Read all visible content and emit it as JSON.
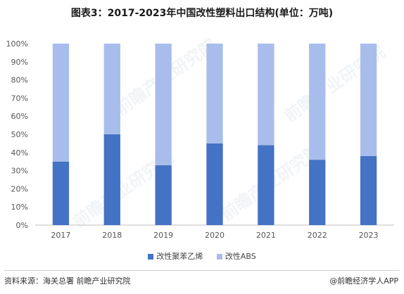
{
  "title": "图表3：2017-2023年中国改性塑料出口结构(单位：万吨)",
  "footer": {
    "source": "资料来源：海关总署  前瞻产业研究院",
    "brand": "@前瞻经济学人APP"
  },
  "watermark_text": "前瞻产业研究院",
  "colors": {
    "series1": "#4472c4",
    "series2": "#a9bdec",
    "axis": "#bfbfbf"
  },
  "chart_data": {
    "type": "bar",
    "stacked": true,
    "title": "图表3：2017-2023年中国改性塑料出口结构(单位：万吨)",
    "categories": [
      "2017",
      "2018",
      "2019",
      "2020",
      "2021",
      "2022",
      "2023"
    ],
    "y_ticks": [
      "0%",
      "10%",
      "20%",
      "30%",
      "40%",
      "50%",
      "60%",
      "70%",
      "80%",
      "90%",
      "100%"
    ],
    "ylim": [
      0,
      100
    ],
    "grid": false,
    "legend_position": "bottom",
    "series": [
      {
        "name": "改性聚苯乙烯",
        "values": [
          35,
          50,
          33,
          45,
          44,
          36,
          38
        ]
      },
      {
        "name": "改性ABS",
        "values": [
          65,
          50,
          67,
          55,
          56,
          64,
          62
        ]
      }
    ]
  }
}
